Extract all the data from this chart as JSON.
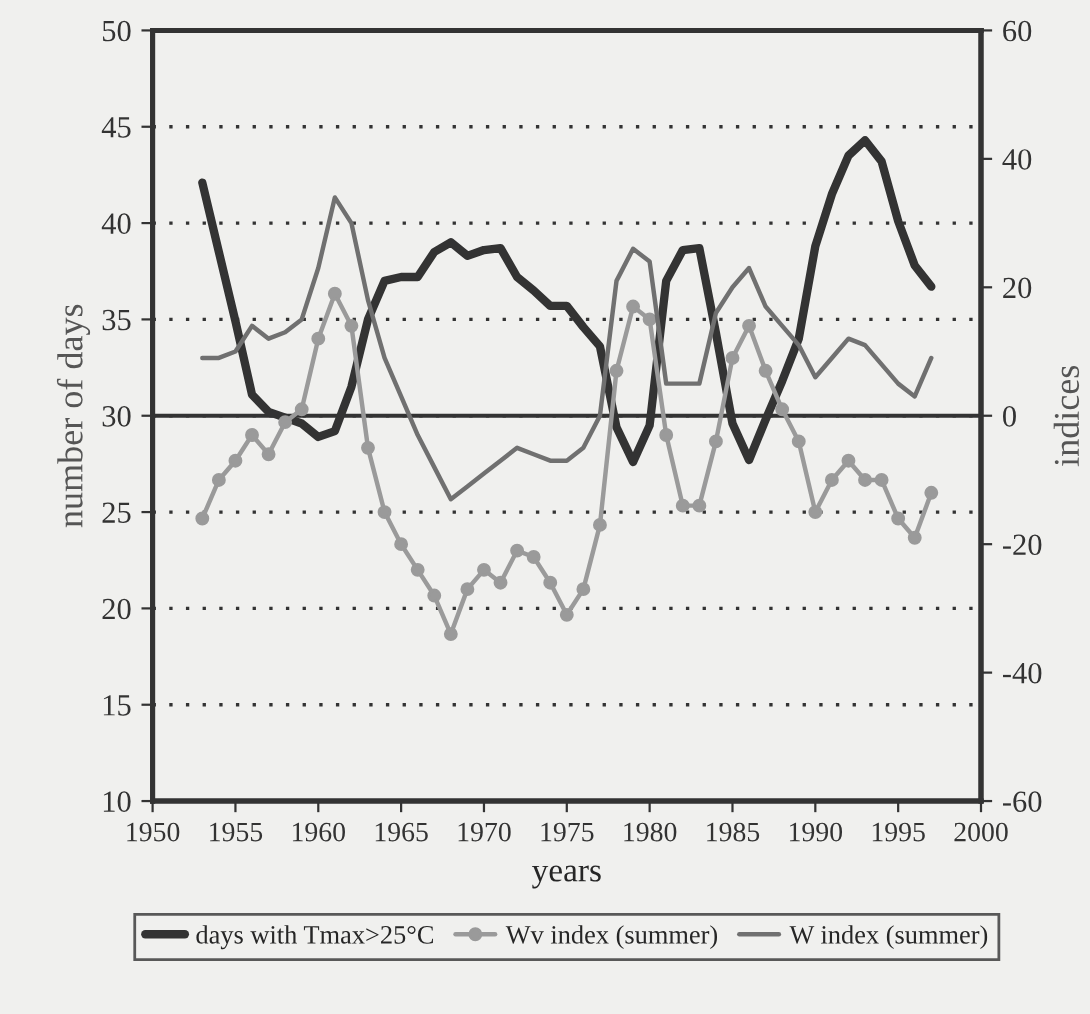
{
  "chart_data": {
    "type": "line",
    "xlabel": "years",
    "ylabel": "number of days",
    "y2label": "indices",
    "x": [
      1953,
      1954,
      1955,
      1956,
      1957,
      1958,
      1959,
      1960,
      1961,
      1962,
      1963,
      1964,
      1965,
      1966,
      1967,
      1968,
      1969,
      1970,
      1971,
      1972,
      1973,
      1974,
      1975,
      1976,
      1977,
      1978,
      1979,
      1980,
      1981,
      1982,
      1983,
      1984,
      1985,
      1986,
      1987,
      1988,
      1989,
      1990,
      1991,
      1992,
      1993,
      1994,
      1995,
      1996,
      1997
    ],
    "series": [
      {
        "name": "days with Tmax>25°C",
        "color": "#333333",
        "marker": "none",
        "values": [
          42.1,
          38.5,
          34.9,
          31.1,
          30.2,
          29.9,
          29.6,
          28.9,
          29.2,
          31.5,
          35.0,
          37.0,
          37.2,
          37.2,
          38.5,
          39.0,
          38.3,
          38.6,
          38.7,
          37.2,
          36.5,
          35.7,
          35.7,
          34.6,
          33.6,
          29.4,
          27.6,
          29.5,
          37.0,
          38.6,
          38.7,
          34.3,
          29.6,
          27.7,
          29.8,
          31.8,
          34.0,
          38.8,
          41.5,
          43.5,
          44.3,
          43.2,
          40.1,
          37.8,
          36.7
        ]
      },
      {
        "name": "Wv index (summer)",
        "color": "#9a9a9a",
        "marker": "circle",
        "axis": "y2",
        "values": [
          -16,
          -10,
          -7,
          -3,
          -6,
          -1,
          1,
          12,
          19,
          14,
          -5,
          -15,
          -20,
          -24,
          -28,
          -34,
          -27,
          -24,
          -26,
          -21,
          -22,
          -26,
          -31,
          -27,
          -17,
          7,
          17,
          15,
          -3,
          -14,
          -14,
          -4,
          9,
          14,
          7,
          1,
          -4,
          -15,
          -10,
          -7,
          -10,
          -10,
          -16,
          -19,
          -12
        ]
      },
      {
        "name": "W index (summer)",
        "color": "#707070",
        "marker": "none",
        "axis": "y2",
        "values": [
          9,
          9,
          10,
          14,
          12,
          13,
          15,
          23,
          34,
          30,
          18,
          9,
          3,
          -3,
          -8,
          -13,
          -11,
          -9,
          -7,
          -5,
          -6,
          -7,
          -7,
          -5,
          0,
          21,
          26,
          24,
          5,
          5,
          5,
          16,
          20,
          23,
          17,
          14,
          11,
          6,
          9,
          12,
          11,
          8,
          5,
          3,
          9
        ]
      }
    ],
    "xlim": [
      1950,
      2000
    ],
    "xticks": [
      1950,
      1955,
      1960,
      1965,
      1970,
      1975,
      1980,
      1985,
      1990,
      1995,
      2000
    ],
    "ylim": [
      10,
      50
    ],
    "yticks": [
      10,
      15,
      20,
      25,
      30,
      35,
      40,
      45,
      50
    ],
    "y2lim": [
      -60,
      60
    ],
    "y2ticks": [
      -60,
      -40,
      -20,
      0,
      20,
      40,
      60
    ],
    "ref_lines": [
      {
        "axis": "y",
        "value": 30,
        "color": "#333333",
        "line_style": "solid"
      }
    ],
    "grid": "y",
    "legend": "bottom"
  }
}
